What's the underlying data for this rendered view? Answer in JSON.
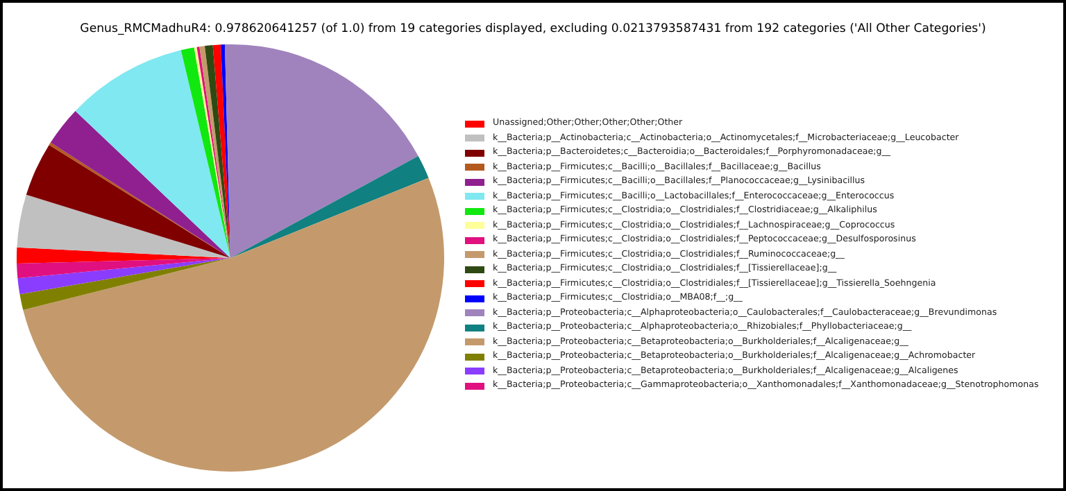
{
  "chart_data": {
    "type": "pie",
    "title": "Genus_RMCMadhuR4: 0.978620641257 (of 1.0) from 19 categories displayed, excluding 0.0213793587431 from 192 categories ('All Other Categories')",
    "legend": "right",
    "categories": [
      "Unassigned;Other;Other;Other;Other;Other",
      "k__Bacteria;p__Actinobacteria;c__Actinobacteria;o__Actinomycetales;f__Microbacteriaceae;g__Leucobacter",
      "k__Bacteria;p__Bacteroidetes;c__Bacteroidia;o__Bacteroidales;f__Porphyromonadaceae;g__",
      "k__Bacteria;p__Firmicutes;c__Bacilli;o__Bacillales;f__Bacillaceae;g__Bacillus",
      "k__Bacteria;p__Firmicutes;c__Bacilli;o__Bacillales;f__Planococcaceae;g__Lysinibacillus",
      "k__Bacteria;p__Firmicutes;c__Bacilli;o__Lactobacillales;f__Enterococcaceae;g__Enterococcus",
      "k__Bacteria;p__Firmicutes;c__Clostridia;o__Clostridiales;f__Clostridiaceae;g__Alkaliphilus",
      "k__Bacteria;p__Firmicutes;c__Clostridia;o__Clostridiales;f__Lachnospiraceae;g__Coprococcus",
      "k__Bacteria;p__Firmicutes;c__Clostridia;o__Clostridiales;f__Peptococcaceae;g__Desulfosporosinus",
      "k__Bacteria;p__Firmicutes;c__Clostridia;o__Clostridiales;f__Ruminococcaceae;g__",
      "k__Bacteria;p__Firmicutes;c__Clostridia;o__Clostridiales;f__[Tissierellaceae];g__",
      "k__Bacteria;p__Firmicutes;c__Clostridia;o__Clostridiales;f__[Tissierellaceae];g__Tissierella_Soehngenia",
      "k__Bacteria;p__Firmicutes;c__Clostridia;o__MBA08;f__;g__",
      "k__Bacteria;p__Proteobacteria;c__Alphaproteobacteria;o__Caulobacterales;f__Caulobacteraceae;g__Brevundimonas",
      "k__Bacteria;p__Proteobacteria;c__Alphaproteobacteria;o__Rhizobiales;f__Phyllobacteriaceae;g__",
      "k__Bacteria;p__Proteobacteria;c__Betaproteobacteria;o__Burkholderiales;f__Alcaligenaceae;g__",
      "k__Bacteria;p__Proteobacteria;c__Betaproteobacteria;o__Burkholderiales;f__Alcaligenaceae;g__Achromobacter",
      "k__Bacteria;p__Proteobacteria;c__Betaproteobacteria;o__Burkholderiales;f__Alcaligenaceae;g__Alcaligenes",
      "k__Bacteria;p__Proteobacteria;c__Gammaproteobacteria;o__Xanthomonadales;f__Xanthomonadaceae;g__Stenotrophomonas"
    ],
    "values": [
      1.2,
      4.0,
      4.1,
      0.2,
      3.0,
      9.2,
      1.0,
      0.2,
      0.2,
      0.4,
      0.6,
      0.6,
      0.3,
      17.5,
      1.8,
      52.2,
      1.2,
      1.2,
      1.1
    ],
    "colors": [
      "#ff0000",
      "#c0c0c0",
      "#800000",
      "#b35a1f",
      "#902090",
      "#80e8f0",
      "#10e810",
      "#ffff99",
      "#e0107e",
      "#c49a6c",
      "#2e4a12",
      "#ff0000",
      "#0000ff",
      "#a083bd",
      "#108080",
      "#c49a6c",
      "#808000",
      "#8a3dff",
      "#e01080"
    ]
  }
}
